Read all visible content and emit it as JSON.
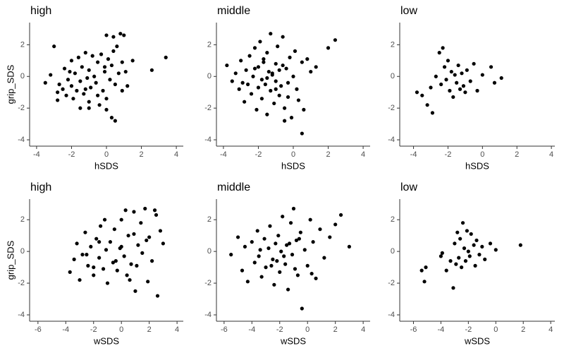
{
  "chart_data": [
    {
      "type": "scatter",
      "title": "high",
      "xlabel": "hSDS",
      "ylabel": "grip_SDS",
      "x": [
        -3.5,
        -3.2,
        -3.0,
        -2.8,
        -2.7,
        -2.5,
        -2.4,
        -2.3,
        -2.2,
        -2.1,
        -2.0,
        -2.0,
        -1.9,
        -1.8,
        -1.7,
        -1.6,
        -1.5,
        -1.5,
        -1.4,
        -1.3,
        -1.2,
        -1.1,
        -1.0,
        -1.0,
        -0.9,
        -0.8,
        -0.7,
        -0.6,
        -0.5,
        -0.4,
        -0.3,
        -0.2,
        -0.1,
        0.0,
        0.0,
        0.1,
        0.2,
        0.3,
        0.4,
        0.5,
        0.6,
        0.7,
        0.8,
        0.9,
        1.0,
        1.1,
        1.2,
        1.5,
        2.6,
        3.4,
        -1.0,
        -0.5,
        0.3,
        -2.8,
        -1.2,
        0.5,
        0.9,
        -0.1,
        0.0,
        0.4
      ],
      "y": [
        -0.4,
        0.1,
        1.9,
        -1.0,
        -0.5,
        -0.8,
        0.5,
        -1.2,
        -0.2,
        0.3,
        -0.6,
        1.0,
        -1.4,
        0.2,
        -0.9,
        1.2,
        -0.3,
        -2.0,
        0.6,
        -1.1,
        1.5,
        -0.1,
        0.4,
        -1.6,
        -0.7,
        1.3,
        0.0,
        -0.4,
        0.9,
        -1.8,
        1.4,
        -0.9,
        0.3,
        2.6,
        -2.1,
        1.1,
        -0.2,
        0.7,
        2.5,
        -0.5,
        1.9,
        0.2,
        2.7,
        0.9,
        2.6,
        0.3,
        -0.6,
        1.0,
        0.4,
        1.2,
        -2.0,
        -1.2,
        -2.6,
        -1.5,
        -0.8,
        -2.8,
        -0.9,
        0.6,
        -1.4,
        1.6
      ],
      "color": "#000000",
      "xlim": [
        -4.4,
        4.4
      ],
      "ylim": [
        -4.4,
        3.4
      ],
      "xticks": [
        -4,
        -2,
        0,
        2,
        4
      ],
      "yticks": [
        -4,
        -2,
        0,
        2
      ]
    },
    {
      "type": "scatter",
      "title": "middle",
      "xlabel": "hSDS",
      "x": [
        -3.8,
        -3.5,
        -3.3,
        -3.1,
        -3.0,
        -2.8,
        -2.7,
        -2.6,
        -2.5,
        -2.4,
        -2.3,
        -2.2,
        -2.1,
        -2.0,
        -2.0,
        -1.9,
        -1.8,
        -1.8,
        -1.7,
        -1.6,
        -1.5,
        -1.5,
        -1.4,
        -1.3,
        -1.3,
        -1.2,
        -1.1,
        -1.0,
        -1.0,
        -0.9,
        -0.8,
        -0.8,
        -0.7,
        -0.6,
        -0.5,
        -0.4,
        -0.3,
        -0.2,
        -0.1,
        0.0,
        0.1,
        0.2,
        0.3,
        0.5,
        0.6,
        0.8,
        1.0,
        1.3,
        2.0,
        2.4,
        -1.5,
        -1.0,
        -2.2,
        -0.5,
        0.5,
        -1.2,
        -0.3,
        -2.9,
        -1.7,
        -0.6
      ],
      "y": [
        0.7,
        -0.3,
        0.2,
        -0.8,
        1.0,
        -1.6,
        0.4,
        -0.5,
        1.3,
        -1.1,
        0.0,
        1.8,
        -2.1,
        0.6,
        -0.7,
        2.2,
        -0.2,
        -1.4,
        0.9,
        -0.5,
        1.5,
        -2.4,
        0.3,
        -0.9,
        2.7,
        0.1,
        -1.7,
        0.8,
        -0.3,
        1.9,
        -1.2,
        0.4,
        -0.6,
        2.5,
        -2.0,
        0.5,
        -0.4,
        1.2,
        -2.6,
        0.0,
        1.6,
        -0.8,
        -1.5,
        0.9,
        -2.1,
        1.1,
        0.3,
        0.6,
        1.8,
        2.3,
        -0.1,
        -0.8,
        0.5,
        -2.8,
        -3.6,
        0.2,
        -1.3,
        -0.4,
        1.1,
        0.7
      ],
      "color": "#000000",
      "xlim": [
        -4.4,
        4.4
      ],
      "ylim": [
        -4.4,
        3.4
      ],
      "xticks": [
        -4,
        -2,
        0,
        2,
        4
      ],
      "yticks": [
        -4,
        -2,
        0,
        2
      ]
    },
    {
      "type": "scatter",
      "title": "low",
      "xlabel": "hSDS",
      "x": [
        -3.8,
        -3.5,
        -3.2,
        -3.0,
        -2.9,
        -2.7,
        -2.5,
        -2.4,
        -2.3,
        -2.2,
        -2.1,
        -2.0,
        -1.9,
        -1.8,
        -1.7,
        -1.6,
        -1.5,
        -1.4,
        -1.3,
        -1.2,
        -1.1,
        -1.0,
        -0.9,
        -0.7,
        -0.5,
        -0.3,
        0.0,
        0.5,
        0.7,
        1.1
      ],
      "y": [
        -1.0,
        -1.2,
        -1.8,
        -0.7,
        -2.3,
        0.0,
        1.5,
        -0.5,
        1.8,
        0.6,
        -0.2,
        1.0,
        -0.9,
        0.3,
        -1.3,
        0.1,
        -0.4,
        0.7,
        -0.8,
        0.2,
        -0.6,
        -1.0,
        0.4,
        -0.3,
        0.8,
        -0.9,
        0.1,
        0.6,
        -0.4,
        -0.1
      ],
      "color": "#000000",
      "xlim": [
        -4.8,
        4.2
      ],
      "ylim": [
        -4.4,
        3.4
      ],
      "xticks": [
        -4,
        -2,
        0,
        2,
        4
      ],
      "yticks": [
        -4,
        -2,
        0,
        2
      ]
    },
    {
      "type": "scatter",
      "title": "high",
      "xlabel": "wSDS",
      "ylabel": "grip_SDS",
      "x": [
        -3.7,
        -3.4,
        -3.2,
        -3.0,
        -2.8,
        -2.6,
        -2.4,
        -2.2,
        -2.0,
        -1.8,
        -1.6,
        -1.5,
        -1.3,
        -1.1,
        -1.0,
        -0.8,
        -0.6,
        -0.5,
        -0.3,
        -0.1,
        0.0,
        0.2,
        0.4,
        0.5,
        0.7,
        0.9,
        1.0,
        1.2,
        1.4,
        1.5,
        1.7,
        1.9,
        2.0,
        2.2,
        2.4,
        2.6,
        2.8,
        3.0,
        -2.5,
        -1.2,
        -0.4,
        0.3,
        1.1,
        1.8,
        -2.0,
        0.0,
        0.6,
        2.5,
        -1.6,
        0.9
      ],
      "y": [
        -1.3,
        -0.5,
        0.5,
        -1.8,
        -0.2,
        1.2,
        -0.9,
        0.3,
        -1.5,
        0.8,
        -0.4,
        1.6,
        -1.1,
        0.1,
        -2.0,
        0.6,
        -0.7,
        1.4,
        -1.2,
        0.2,
        2.0,
        -0.3,
        -1.5,
        1.0,
        -0.8,
        2.5,
        -2.5,
        0.4,
        1.8,
        -0.1,
        2.7,
        -1.9,
        0.9,
        -0.6,
        2.6,
        -2.8,
        1.3,
        0.5,
        -0.2,
        2.0,
        -0.6,
        2.6,
        -0.9,
        0.7,
        -1.0,
        0.3,
        -1.8,
        2.3,
        0.6,
        1.1
      ],
      "color": "#000000",
      "xlim": [
        -6.6,
        4.45
      ],
      "ylim": [
        -4.4,
        3.3
      ],
      "xticks": [
        -6,
        -4,
        -2,
        0,
        2,
        4
      ],
      "yticks": [
        -4,
        -2,
        0,
        2
      ]
    },
    {
      "type": "scatter",
      "title": "middle",
      "xlabel": "wSDS",
      "x": [
        -5.5,
        -5.0,
        -4.7,
        -4.5,
        -4.3,
        -4.0,
        -3.8,
        -3.6,
        -3.5,
        -3.3,
        -3.1,
        -3.0,
        -2.8,
        -2.7,
        -2.5,
        -2.4,
        -2.3,
        -2.1,
        -2.0,
        -1.9,
        -1.8,
        -1.6,
        -1.5,
        -1.4,
        -1.2,
        -1.1,
        -1.0,
        -0.8,
        -0.7,
        -0.5,
        -0.4,
        -0.2,
        0.0,
        0.2,
        0.4,
        0.6,
        0.9,
        1.2,
        1.6,
        2.0,
        2.4,
        3.0,
        -2.2,
        -1.3,
        -0.9,
        -3.4,
        -0.6,
        -1.7,
        -2.6,
        0.3
      ],
      "y": [
        -0.2,
        0.9,
        -1.2,
        0.3,
        -1.9,
        0.6,
        -0.7,
        1.3,
        -0.3,
        -1.6,
        0.8,
        -1.0,
        0.2,
        1.6,
        -0.5,
        -2.1,
        0.5,
        1.0,
        -1.3,
        0.0,
        2.2,
        -0.8,
        0.4,
        -2.4,
        1.8,
        -0.2,
        2.7,
        0.7,
        -1.5,
        1.2,
        -3.6,
        0.1,
        -0.9,
        2.0,
        0.6,
        -1.7,
        1.4,
        -0.4,
        0.9,
        1.7,
        2.3,
        0.3,
        -0.6,
        0.5,
        -1.1,
        0.1,
        0.8,
        -0.3,
        -0.9,
        -1.4
      ],
      "color": "#000000",
      "xlim": [
        -6.55,
        4.5
      ],
      "ylim": [
        -4.4,
        3.3
      ],
      "xticks": [
        -6,
        -4,
        -2,
        0,
        2,
        4
      ],
      "yticks": [
        -4,
        -2,
        0,
        2
      ]
    },
    {
      "type": "scatter",
      "title": "low",
      "xlabel": "wSDS",
      "x": [
        -5.4,
        -5.2,
        -5.1,
        -4.0,
        -3.9,
        -3.6,
        -3.3,
        -3.1,
        -3.0,
        -2.9,
        -2.8,
        -2.7,
        -2.6,
        -2.5,
        -2.4,
        -2.3,
        -2.2,
        -2.1,
        -2.0,
        -1.9,
        -1.8,
        -1.6,
        -1.5,
        -1.4,
        -1.2,
        -1.0,
        -0.8,
        -0.4,
        0.0,
        1.8
      ],
      "y": [
        -1.2,
        -1.9,
        -1.0,
        -0.3,
        -0.1,
        -1.2,
        -0.6,
        -2.3,
        0.5,
        -0.8,
        1.2,
        -0.4,
        0.8,
        -1.0,
        1.8,
        0.2,
        -0.6,
        1.3,
        0.0,
        -0.3,
        1.1,
        0.4,
        -0.9,
        0.7,
        -0.2,
        0.3,
        -0.5,
        0.5,
        0.1,
        0.4
      ],
      "color": "#000000",
      "xlim": [
        -7.0,
        4.3
      ],
      "ylim": [
        -4.4,
        3.3
      ],
      "xticks": [
        -6,
        -4,
        -2,
        0,
        2,
        4
      ],
      "yticks": [
        -4,
        -2,
        0,
        2
      ]
    }
  ]
}
